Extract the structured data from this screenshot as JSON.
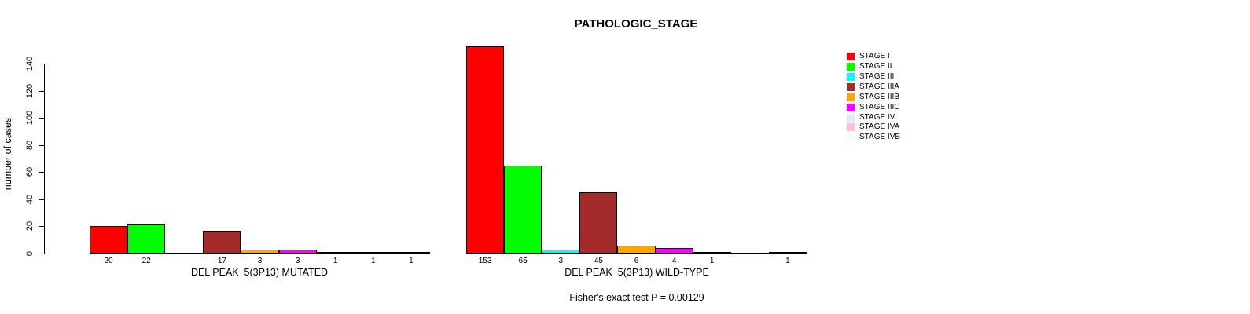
{
  "chart_data": {
    "type": "bar",
    "title": "PATHOLOGIC_STAGE",
    "ylabel": "number of cases",
    "ylim": [
      0,
      140
    ],
    "yticks": [
      0,
      20,
      40,
      60,
      80,
      100,
      120,
      140
    ],
    "grid": false,
    "legend_position": "right",
    "categories": [
      "STAGE I",
      "STAGE II",
      "STAGE III",
      "STAGE IIIA",
      "STAGE IIIB",
      "STAGE IIIC",
      "STAGE IV",
      "STAGE IVA",
      "STAGE IVB"
    ],
    "colors": [
      "#FF0000",
      "#00FF00",
      "#00FFFF",
      "#A52A2A",
      "#FFA500",
      "#FF00FF",
      "#E6E6FA",
      "#FFC0CB",
      "#F0FFFF"
    ],
    "groups": [
      {
        "label": "DEL PEAK  5(3P13) MUTATED",
        "values": [
          20,
          22,
          0,
          17,
          3,
          3,
          1,
          1,
          1
        ]
      },
      {
        "label": "DEL PEAK  5(3P13) WILD-TYPE",
        "values": [
          153,
          65,
          3,
          45,
          6,
          4,
          1,
          0,
          1
        ]
      }
    ],
    "annotation": "Fisher's exact test P = 0.00129"
  }
}
